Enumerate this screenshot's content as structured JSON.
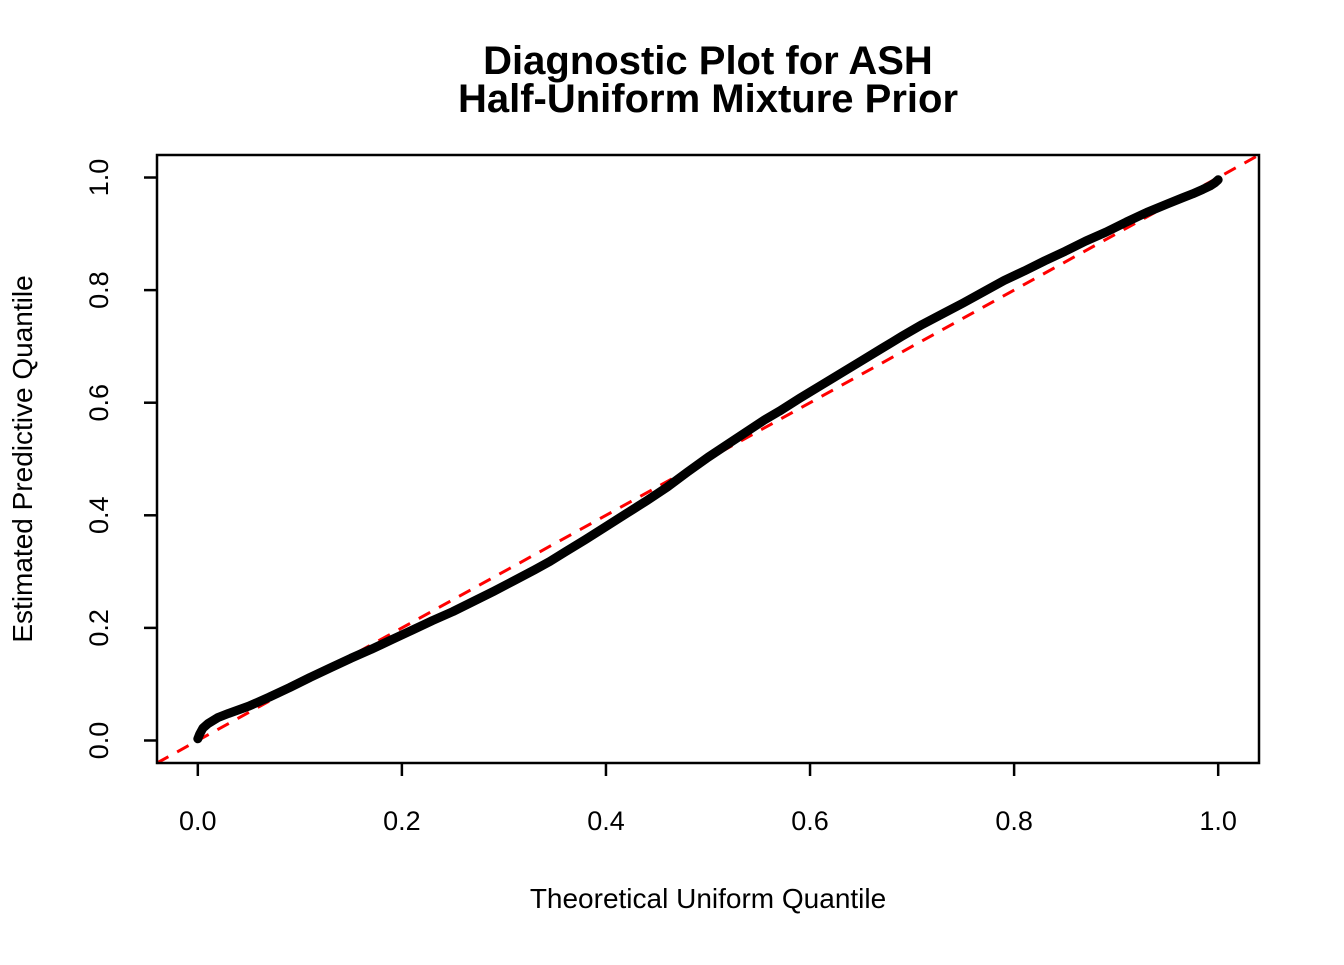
{
  "figure": {
    "background": "#FFFFFF"
  },
  "colors": {
    "curve": "#000000",
    "reference_line": "#FF0000",
    "axis": "#000000",
    "text": "#000000"
  },
  "chart_data": {
    "type": "line",
    "title_line1": "Diagnostic Plot for ASH",
    "title_line2": "Half-Uniform Mixture Prior",
    "xlabel": "Theoretical Uniform Quantile",
    "ylabel": "Estimated Predictive Quantile",
    "xlim": [
      -0.04,
      1.04
    ],
    "ylim": [
      -0.04,
      1.04
    ],
    "x_ticks": [
      0.0,
      0.2,
      0.4,
      0.6,
      0.8,
      1.0
    ],
    "x_tick_labels": [
      "0.0",
      "0.2",
      "0.4",
      "0.6",
      "0.8",
      "1.0"
    ],
    "y_ticks": [
      0.0,
      0.2,
      0.4,
      0.6,
      0.8,
      1.0
    ],
    "y_tick_labels": [
      "0.0",
      "0.2",
      "0.4",
      "0.6",
      "0.8",
      "1.0"
    ],
    "grid": false,
    "legend": "none",
    "series": [
      {
        "name": "estimated-predictive-quantile-curve",
        "type": "line",
        "color": "#000000",
        "line_width": 9,
        "style": "solid",
        "x": [
          0.0,
          0.002,
          0.005,
          0.01,
          0.02,
          0.03,
          0.05,
          0.07,
          0.09,
          0.11,
          0.13,
          0.15,
          0.17,
          0.19,
          0.21,
          0.23,
          0.25,
          0.27,
          0.29,
          0.31,
          0.33,
          0.345,
          0.36,
          0.38,
          0.4,
          0.42,
          0.44,
          0.46,
          0.48,
          0.5,
          0.52,
          0.54,
          0.555,
          0.57,
          0.59,
          0.61,
          0.63,
          0.65,
          0.67,
          0.69,
          0.71,
          0.73,
          0.75,
          0.77,
          0.79,
          0.81,
          0.83,
          0.85,
          0.87,
          0.89,
          0.91,
          0.93,
          0.95,
          0.965,
          0.975,
          0.985,
          0.992,
          0.997,
          1.0
        ],
        "y": [
          0.003,
          0.012,
          0.022,
          0.03,
          0.041,
          0.048,
          0.061,
          0.077,
          0.094,
          0.112,
          0.129,
          0.146,
          0.162,
          0.179,
          0.196,
          0.213,
          0.229,
          0.247,
          0.265,
          0.284,
          0.303,
          0.318,
          0.335,
          0.357,
          0.38,
          0.403,
          0.426,
          0.45,
          0.477,
          0.503,
          0.527,
          0.551,
          0.569,
          0.585,
          0.608,
          0.63,
          0.652,
          0.674,
          0.696,
          0.718,
          0.739,
          0.758,
          0.777,
          0.797,
          0.817,
          0.834,
          0.852,
          0.869,
          0.887,
          0.903,
          0.921,
          0.938,
          0.953,
          0.964,
          0.971,
          0.979,
          0.985,
          0.991,
          0.996
        ]
      },
      {
        "name": "identity-reference-line",
        "type": "line",
        "color": "#FF0000",
        "line_width": 3,
        "style": "dashed",
        "x": [
          -0.04,
          1.04
        ],
        "y": [
          -0.04,
          1.04
        ]
      }
    ]
  }
}
